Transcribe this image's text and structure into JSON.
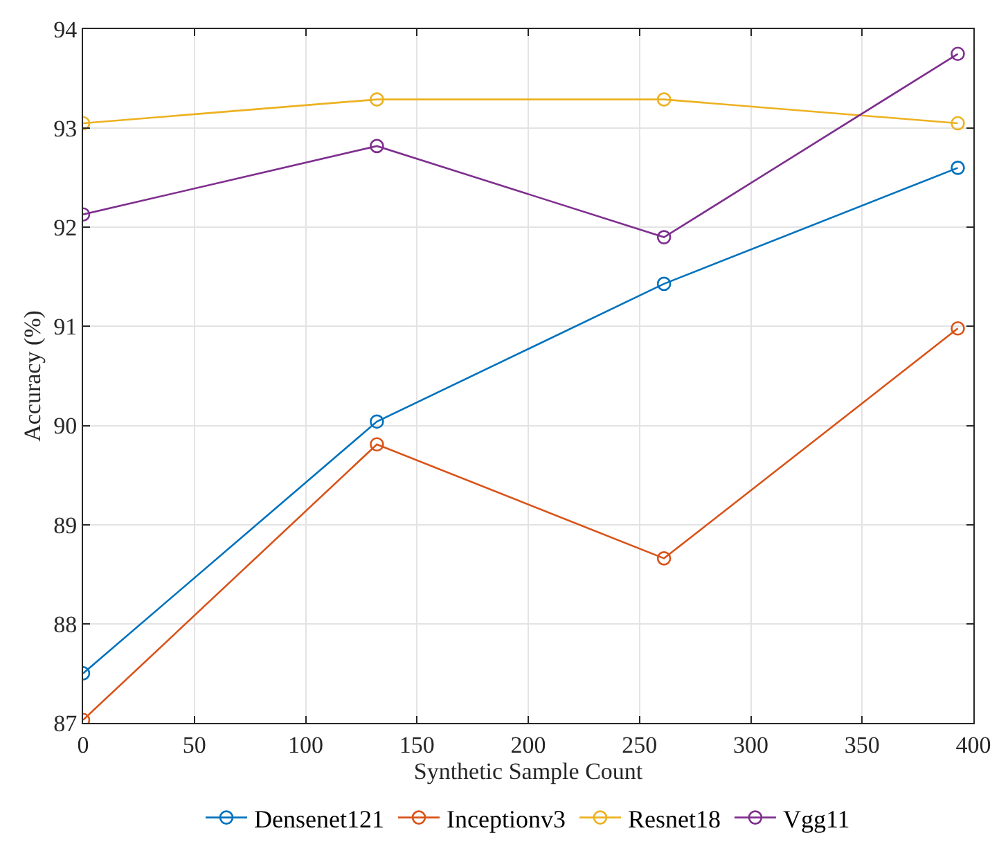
{
  "chart_data": {
    "type": "line",
    "xlabel": "Synthetic Sample Count",
    "ylabel": "Accuracy (%)",
    "x": [
      0,
      132,
      261,
      393
    ],
    "series": [
      {
        "name": "Densenet121",
        "color": "#0072bd",
        "values": [
          87.5,
          90.04,
          91.43,
          92.6
        ]
      },
      {
        "name": "Inceptionv3",
        "color": "#d95319",
        "values": [
          87.03,
          89.81,
          88.66,
          90.98
        ]
      },
      {
        "name": "Resnet18",
        "color": "#edb120",
        "values": [
          93.05,
          93.29,
          93.29,
          93.05
        ]
      },
      {
        "name": "Vgg11",
        "color": "#7e2f8e",
        "values": [
          92.13,
          92.82,
          91.9,
          93.75
        ]
      }
    ],
    "xlim": [
      0,
      400
    ],
    "xticks": [
      0,
      50,
      100,
      150,
      200,
      250,
      300,
      350,
      400
    ],
    "ylim": [
      87,
      94
    ],
    "yticks": [
      87,
      88,
      89,
      90,
      91,
      92,
      93,
      94
    ],
    "grid": true,
    "legend": "bottom",
    "marker": "circle",
    "line_style": "solid"
  }
}
